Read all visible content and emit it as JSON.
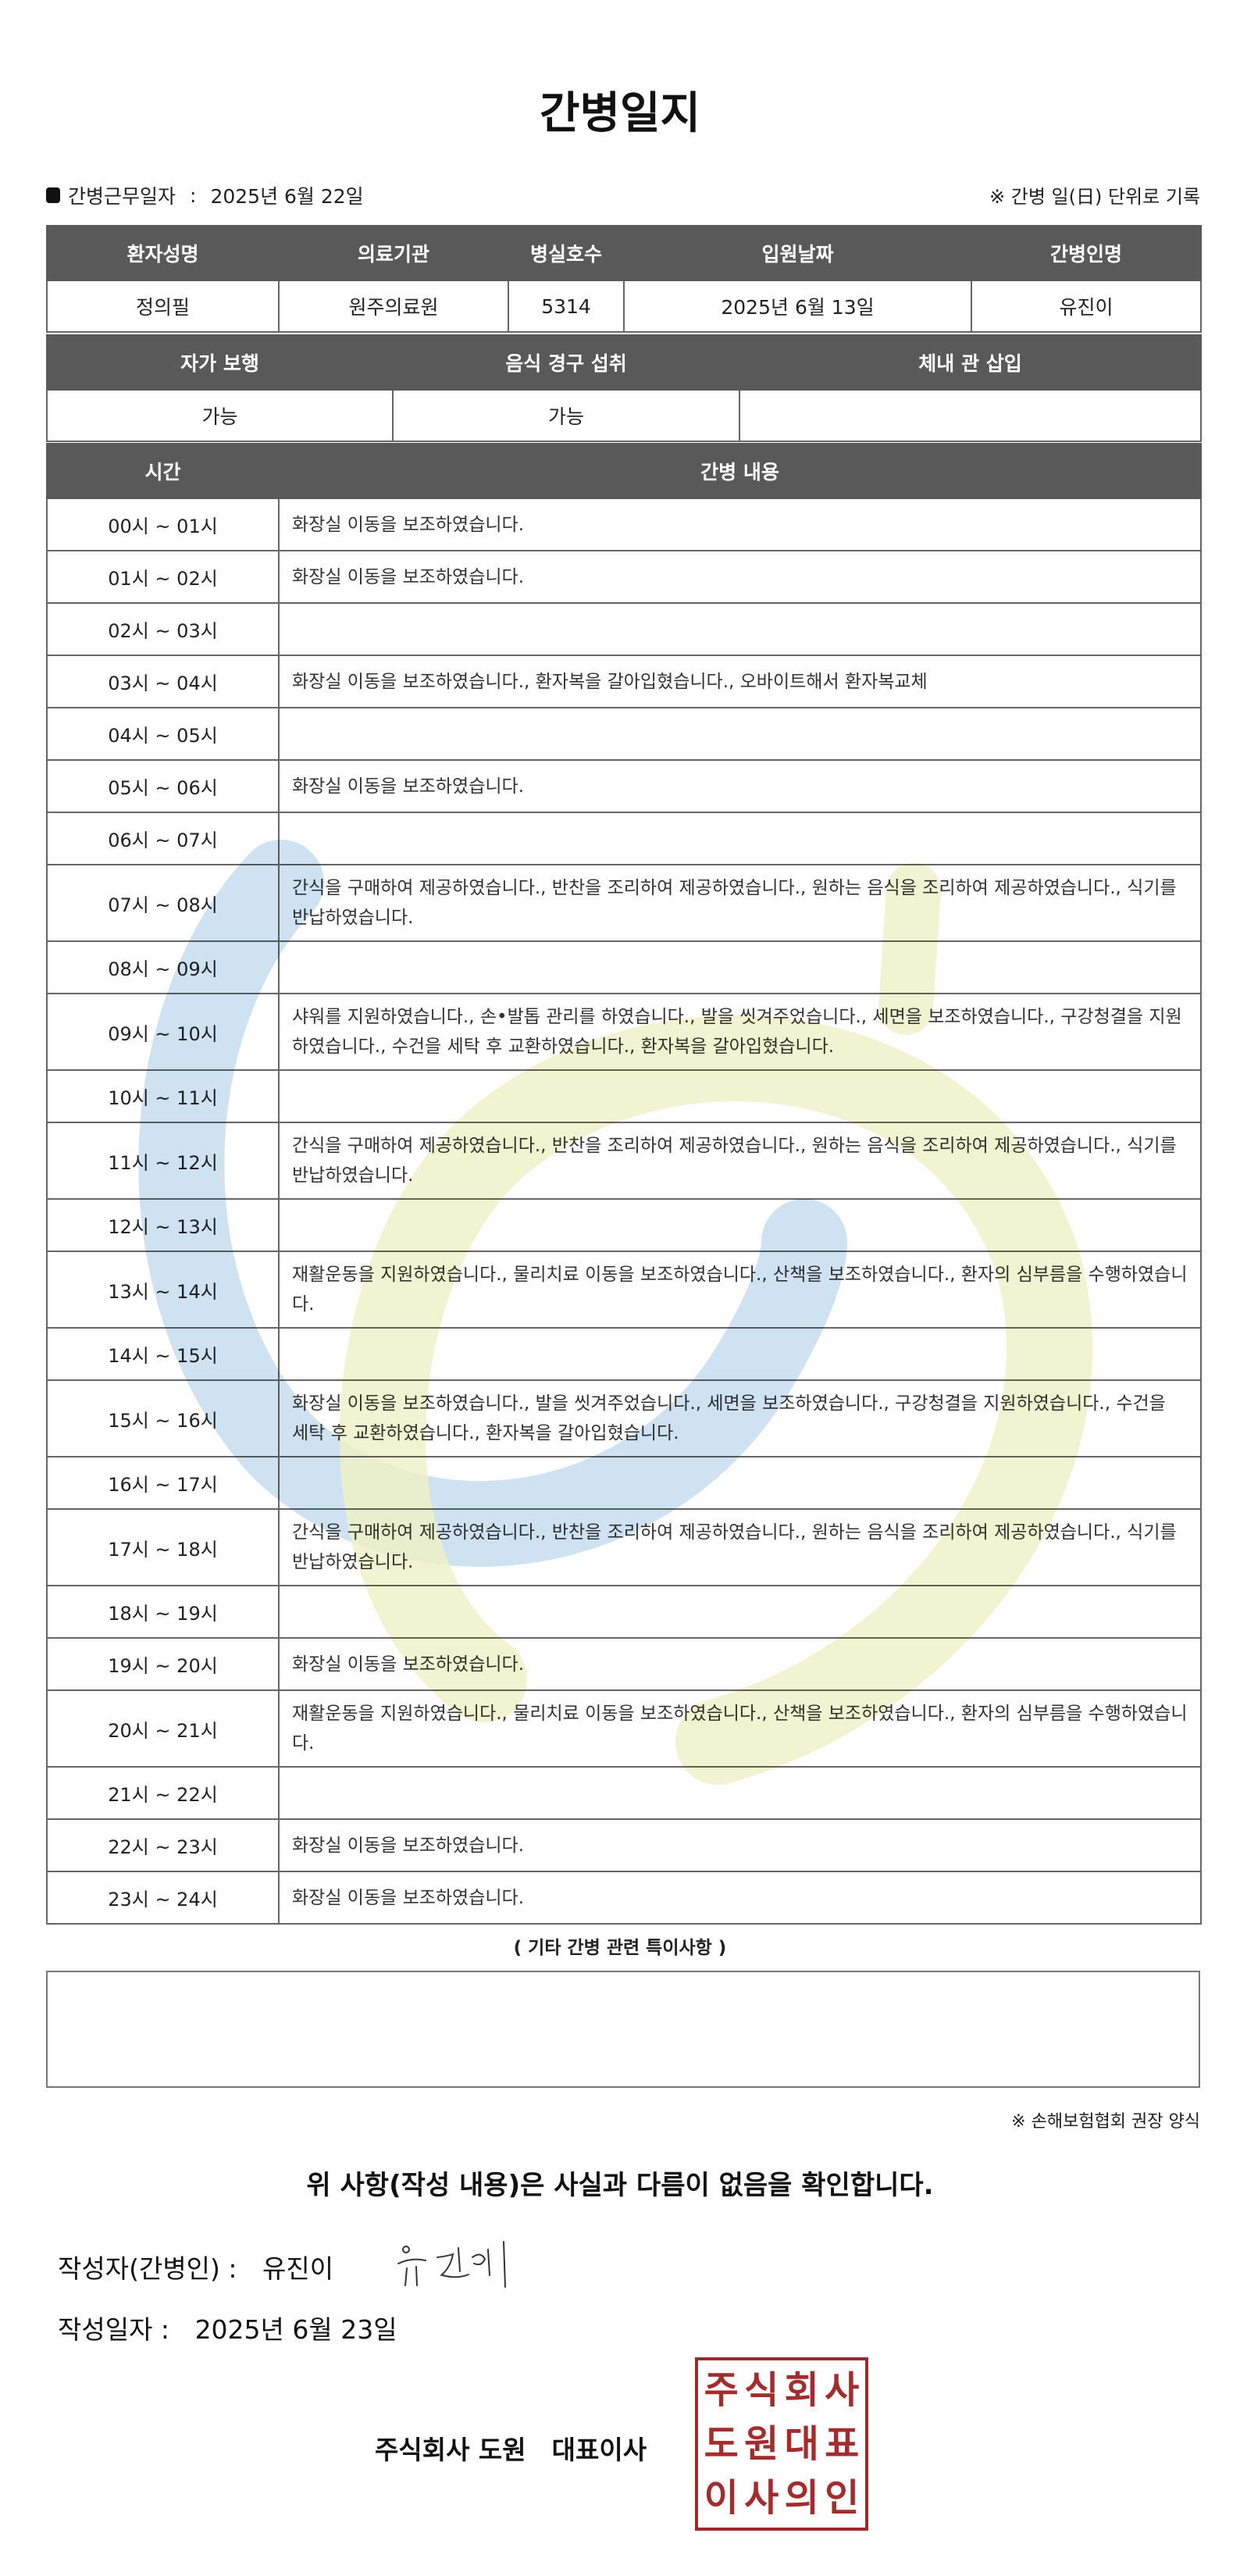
{
  "title": "간병일지",
  "work_date": {
    "label": "간병근무일자",
    "separator": ":",
    "value": "2025년 6월 22일"
  },
  "unit_note": "※ 간병 일(日) 단위로 기록",
  "patient_table": {
    "headers": [
      "환자성명",
      "의료기관",
      "병실호수",
      "입원날짜",
      "간병인명"
    ],
    "values": [
      "정의필",
      "원주의료원",
      "5314",
      "2025년 6월 13일",
      "유진이"
    ]
  },
  "status_table": {
    "headers": [
      "자가 보행",
      "음식 경구 섭취",
      "체내 관 삽입"
    ],
    "values": [
      "가능",
      "가능",
      ""
    ]
  },
  "log_table": {
    "headers": [
      "시간",
      "간병 내용"
    ],
    "rows": [
      {
        "time": "00시 ~ 01시",
        "content": "화장실 이동을 보조하였습니다."
      },
      {
        "time": "01시 ~ 02시",
        "content": "화장실 이동을 보조하였습니다."
      },
      {
        "time": "02시 ~ 03시",
        "content": ""
      },
      {
        "time": "03시 ~ 04시",
        "content": "화장실 이동을 보조하였습니다., 환자복을 갈아입혔습니다., 오바이트해서 환자복교체"
      },
      {
        "time": "04시 ~ 05시",
        "content": ""
      },
      {
        "time": "05시 ~ 06시",
        "content": "화장실 이동을 보조하였습니다."
      },
      {
        "time": "06시 ~ 07시",
        "content": ""
      },
      {
        "time": "07시 ~ 08시",
        "content": "간식을 구매하여 제공하였습니다., 반찬을 조리하여 제공하였습니다., 원하는 음식을 조리하여 제공하였습니다., 식기를 반납하였습니다."
      },
      {
        "time": "08시 ~ 09시",
        "content": ""
      },
      {
        "time": "09시 ~ 10시",
        "content": "샤워를 지원하였습니다., 손•발톱 관리를 하였습니다., 발을 씻겨주었습니다., 세면을 보조하였습니다., 구강청결을 지원하였습니다., 수건을 세탁 후 교환하였습니다., 환자복을 갈아입혔습니다."
      },
      {
        "time": "10시 ~ 11시",
        "content": ""
      },
      {
        "time": "11시 ~ 12시",
        "content": "간식을 구매하여 제공하였습니다., 반찬을 조리하여 제공하였습니다., 원하는 음식을 조리하여 제공하였습니다., 식기를 반납하였습니다."
      },
      {
        "time": "12시 ~ 13시",
        "content": ""
      },
      {
        "time": "13시 ~ 14시",
        "content": "재활운동을 지원하였습니다., 물리치료 이동을 보조하였습니다., 산책을 보조하였습니다., 환자의 심부름을 수행하였습니다."
      },
      {
        "time": "14시 ~ 15시",
        "content": ""
      },
      {
        "time": "15시 ~ 16시",
        "content": "화장실 이동을 보조하였습니다., 발을 씻겨주었습니다., 세면을 보조하였습니다., 구강청결을 지원하였습니다., 수건을 세탁 후 교환하였습니다., 환자복을 갈아입혔습니다."
      },
      {
        "time": "16시 ~ 17시",
        "content": ""
      },
      {
        "time": "17시 ~ 18시",
        "content": "간식을 구매하여 제공하였습니다., 반찬을 조리하여 제공하였습니다., 원하는 음식을 조리하여 제공하였습니다., 식기를 반납하였습니다."
      },
      {
        "time": "18시 ~ 19시",
        "content": ""
      },
      {
        "time": "19시 ~ 20시",
        "content": "화장실 이동을 보조하였습니다."
      },
      {
        "time": "20시 ~ 21시",
        "content": "재활운동을 지원하였습니다., 물리치료 이동을 보조하였습니다., 산책을 보조하였습니다., 환자의 심부름을 수행하였습니다."
      },
      {
        "time": "21시 ~ 22시",
        "content": ""
      },
      {
        "time": "22시 ~ 23시",
        "content": "화장실 이동을 보조하였습니다."
      },
      {
        "time": "23시 ~ 24시",
        "content": "화장실 이동을 보조하였습니다."
      }
    ]
  },
  "remarks": {
    "title": "( 기타 간병 관련 특이사항 )",
    "value": ""
  },
  "footnote": "※ 손해보험협회 권장 양식",
  "confirmation": "위 사항(작성 내용)은 사실과 다름이 없음을 확인합니다.",
  "writer": {
    "label": "작성자(간병인) :",
    "name": "유진이",
    "signature": "유진이"
  },
  "written_date": {
    "label": "작성일자 :",
    "value": "2025년 6월 23일"
  },
  "company": "주식회사 도원　대표이사",
  "seal_text": "주식회사도원대표이사의인",
  "colors": {
    "header_bg": "#595959",
    "seal_red": "#a32c2c",
    "watermark_blue": "#c7ddef",
    "watermark_green": "#eef2c8"
  }
}
